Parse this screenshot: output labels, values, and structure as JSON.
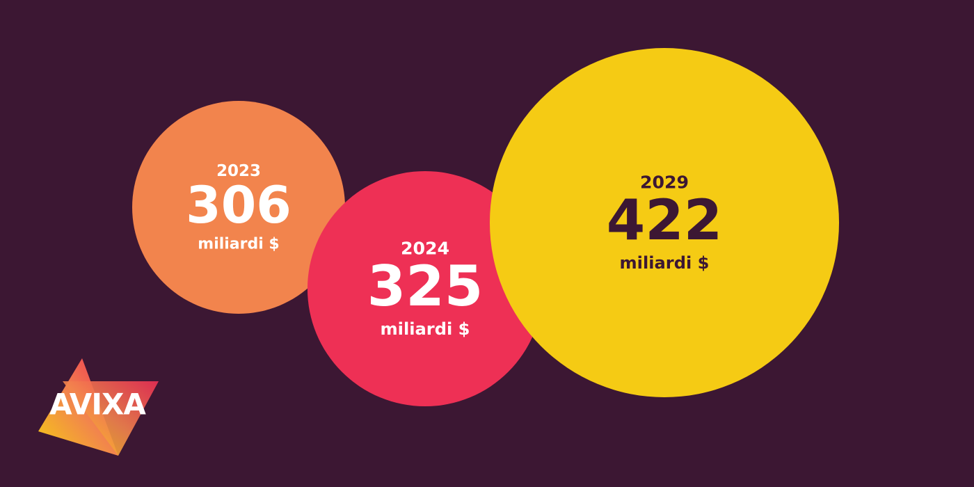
{
  "chart_data": {
    "type": "bubble",
    "categories": [
      "2023",
      "2024",
      "2029"
    ],
    "values": [
      306,
      325,
      422
    ],
    "unit": "miliardi $",
    "colors": [
      "#f2844d",
      "#ee3055",
      "#f5cb14"
    ],
    "logo": "AVIXA"
  }
}
